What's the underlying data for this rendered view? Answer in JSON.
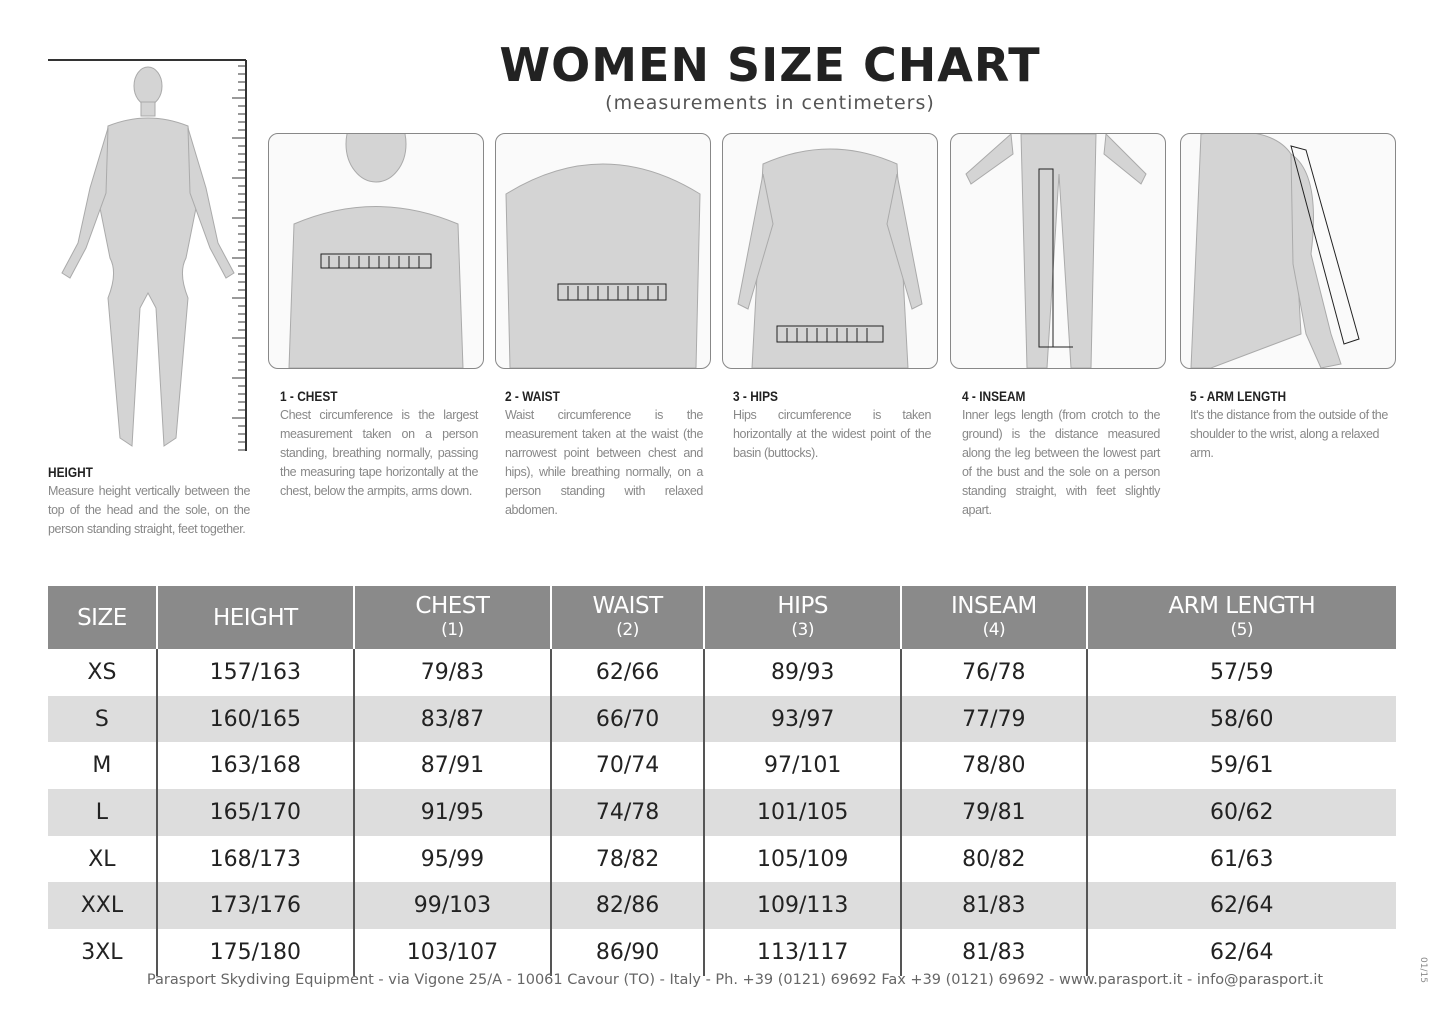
{
  "title": "WOMEN SIZE CHART",
  "subtitle": "(measurements in centimeters)",
  "height_info": {
    "heading": "HEIGHT",
    "text": "Measure height vertically between the top of the head and the sole, on the person standing straight, feet together."
  },
  "measures": [
    {
      "heading": "1 - CHEST",
      "text": "Chest circumference is the largest measurement taken on a person standing, breathing normally, passing the measuring tape horizontally at the chest, below the armpits, arms down."
    },
    {
      "heading": "2 - WAIST",
      "text": "Waist circumference is the measurement taken at the waist (the narrowest point between chest and hips), while breathing normally, on a person standing with relaxed abdomen."
    },
    {
      "heading": "3 - HIPS",
      "text": "Hips circumference is taken horizontally at the widest point of the basin (buttocks)."
    },
    {
      "heading": "4 - INSEAM",
      "text": "Inner legs length (from crotch to the ground) is the distance measured along the leg between the lowest part of the bust and the sole on a person standing straight, with feet slightly apart."
    },
    {
      "heading": "5 - ARM LENGTH",
      "text": "It's the distance from the outside of the shoulder to the wrist, along a relaxed arm."
    }
  ],
  "table": {
    "headers": [
      {
        "label": "SIZE",
        "sub": ""
      },
      {
        "label": "HEIGHT",
        "sub": ""
      },
      {
        "label": "CHEST",
        "sub": "(1)"
      },
      {
        "label": "WAIST",
        "sub": "(2)"
      },
      {
        "label": "HIPS",
        "sub": "(3)"
      },
      {
        "label": "INSEAM",
        "sub": "(4)"
      },
      {
        "label": "ARM LENGTH",
        "sub": "(5)"
      }
    ],
    "rows": [
      [
        "XS",
        "157/163",
        "79/83",
        "62/66",
        "89/93",
        "76/78",
        "57/59"
      ],
      [
        "S",
        "160/165",
        "83/87",
        "66/70",
        "93/97",
        "77/79",
        "58/60"
      ],
      [
        "M",
        "163/168",
        "87/91",
        "70/74",
        "97/101",
        "78/80",
        "59/61"
      ],
      [
        "L",
        "165/170",
        "91/95",
        "74/78",
        "101/105",
        "79/81",
        "60/62"
      ],
      [
        "XL",
        "168/173",
        "95/99",
        "78/82",
        "105/109",
        "80/82",
        "61/63"
      ],
      [
        "XXL",
        "173/176",
        "99/103",
        "82/86",
        "109/113",
        "81/83",
        "62/64"
      ],
      [
        "3XL",
        "175/180",
        "103/107",
        "86/90",
        "113/117",
        "81/83",
        "62/64"
      ]
    ]
  },
  "footer": "Parasport Skydiving Equipment - via Vigone 25/A - 10061 Cavour (TO) - Italy - Ph. +39 (0121) 69692 Fax +39 (0121) 69692 - www.parasport.it - info@parasport.it",
  "version_code": "01/15",
  "colors": {
    "header_bg": "#8a8a8a",
    "alt_row": "#dddddd",
    "figure": "#d4d4d4"
  }
}
